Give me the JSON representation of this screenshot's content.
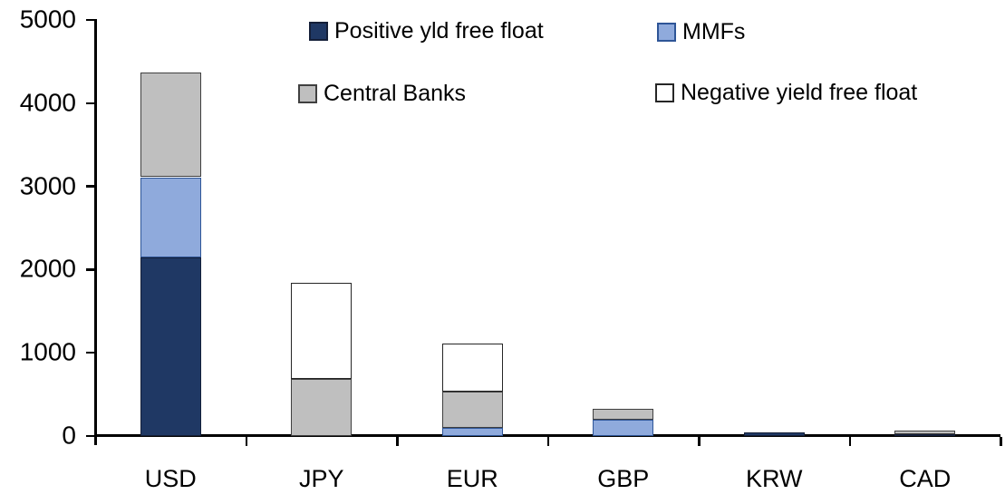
{
  "chart_data": {
    "type": "bar",
    "stacked": true,
    "title": "",
    "xlabel": "",
    "ylabel": "",
    "categories": [
      "USD",
      "JPY",
      "EUR",
      "GBP",
      "KRW",
      "CAD"
    ],
    "series": [
      {
        "name": "Positive yld free float",
        "color": "#1F3864",
        "border": "#141f38",
        "values": [
          2150,
          0,
          0,
          0,
          40,
          25
        ]
      },
      {
        "name": "MMFs",
        "color": "#8FAADC",
        "border": "#2E5597",
        "values": [
          960,
          0,
          100,
          200,
          0,
          0
        ]
      },
      {
        "name": "Central Banks",
        "color": "#BFBFBF",
        "border": "#404040",
        "values": [
          1260,
          690,
          430,
          125,
          0,
          35
        ]
      },
      {
        "name": "Negative yield free float",
        "color": "#FFFFFF",
        "border": "#262626",
        "values": [
          0,
          1150,
          580,
          0,
          0,
          0
        ]
      }
    ],
    "totals": [
      4370,
      1840,
      1110,
      325,
      40,
      60
    ],
    "ylim": [
      0,
      5000
    ],
    "y_ticks": [
      0,
      1000,
      2000,
      3000,
      4000,
      5000
    ],
    "grid": false,
    "legend_position": "top",
    "axis_color": "#000000"
  }
}
